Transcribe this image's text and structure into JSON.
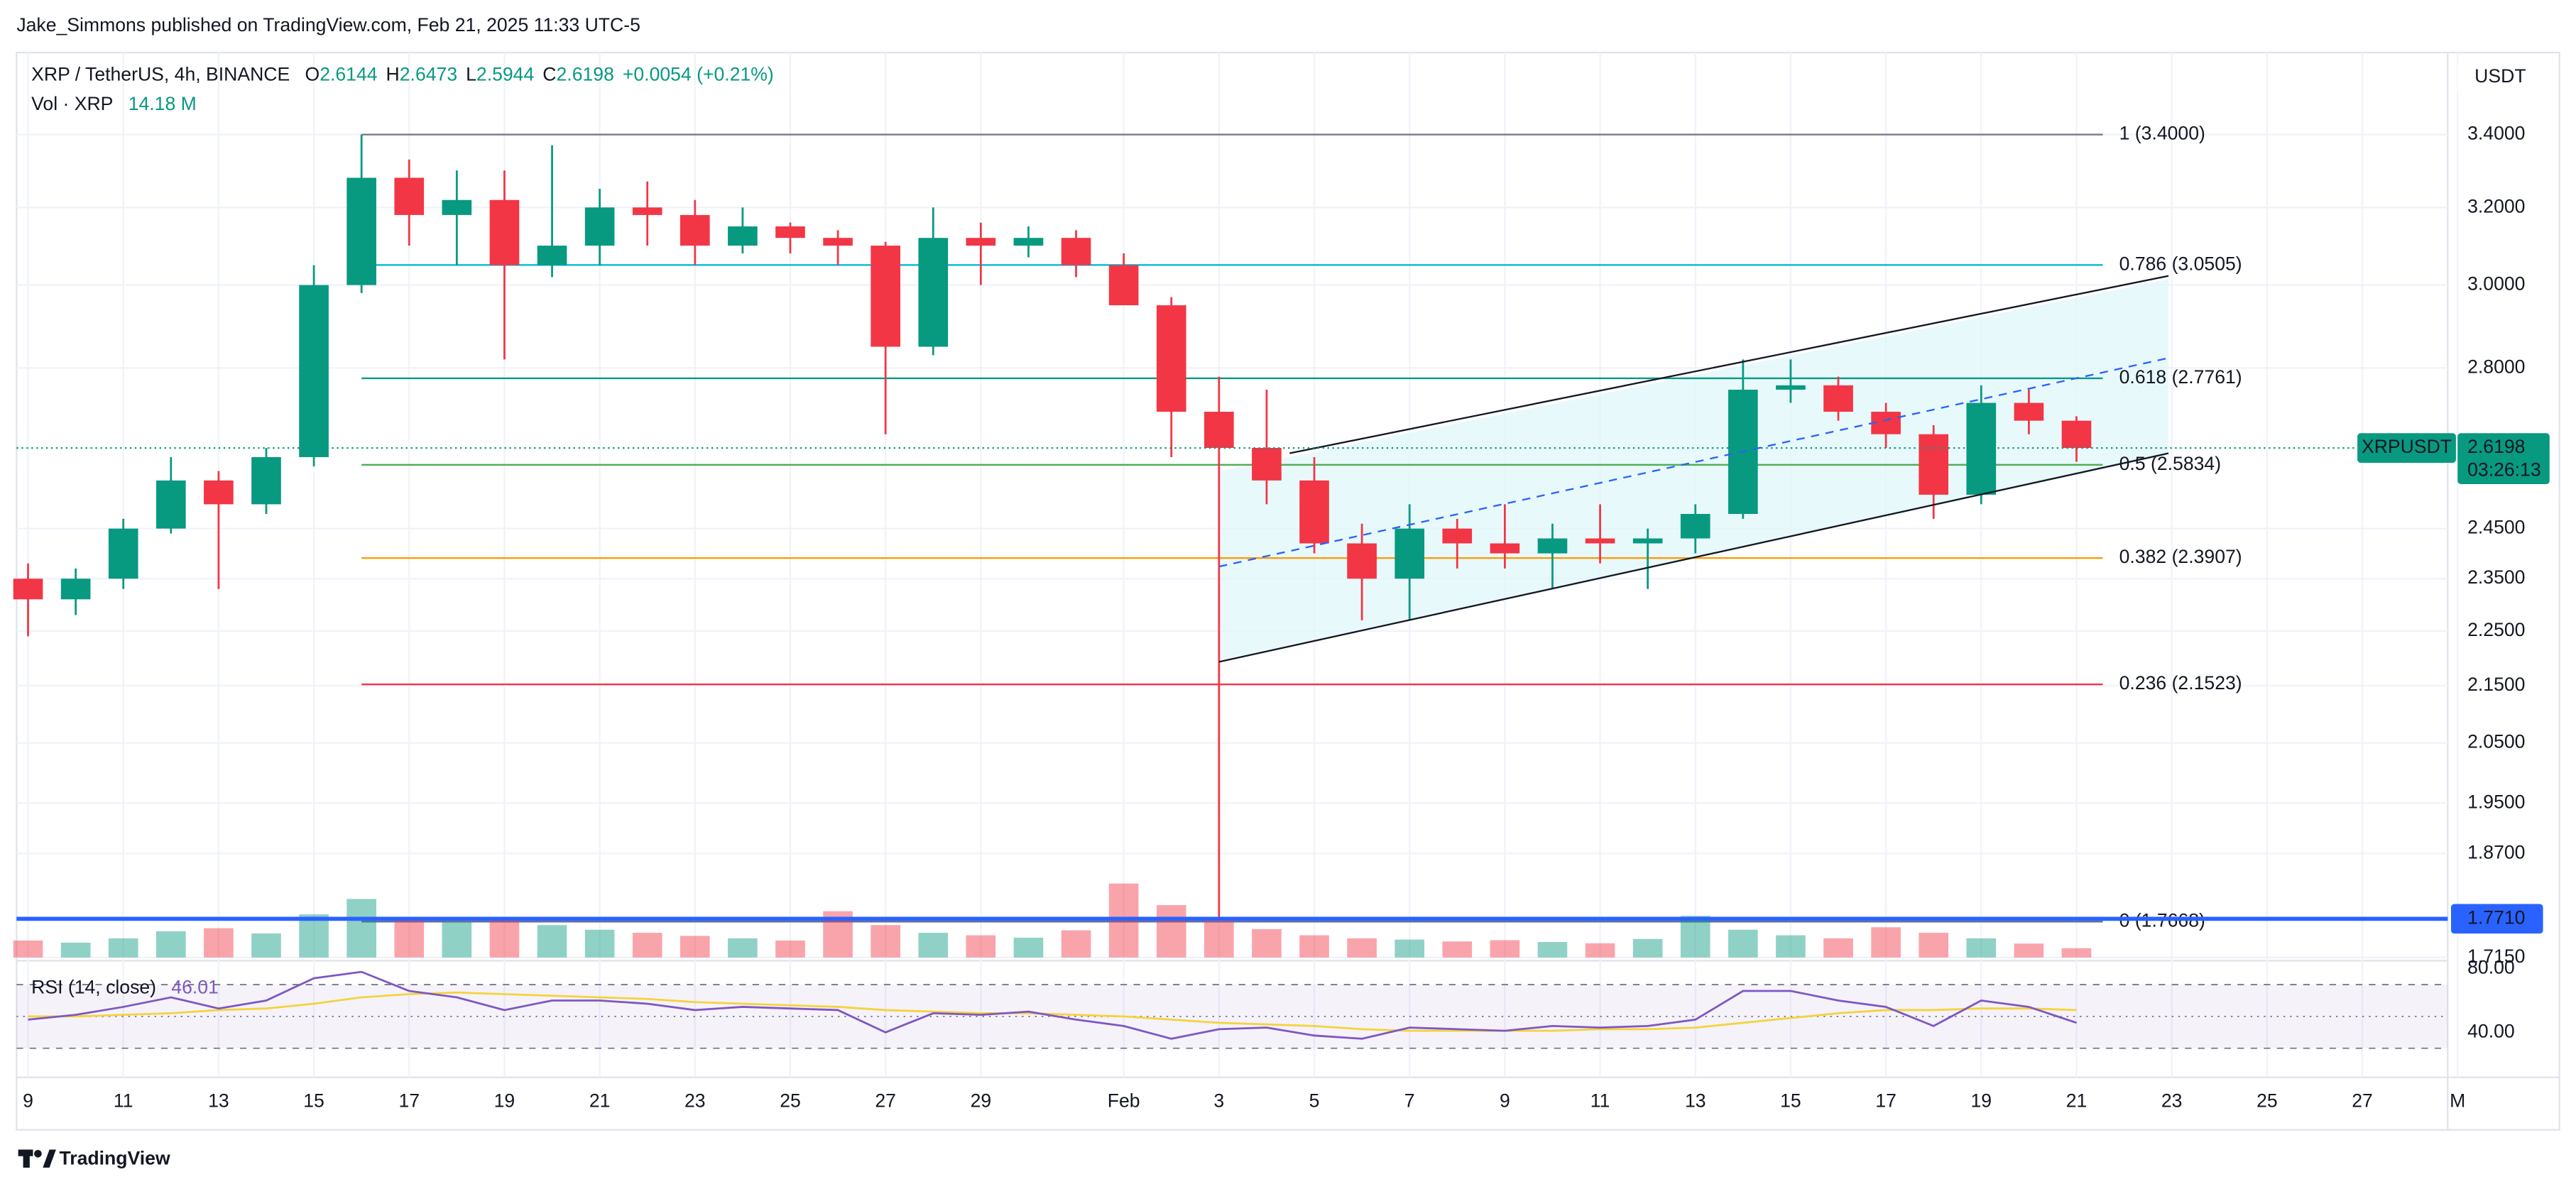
{
  "header": {
    "publisher": "Jake_Simmons published on TradingView.com, Feb 21, 2025 11:33 UTC-5",
    "brand": "TradingView"
  },
  "chart_data": {
    "type": "candlestick",
    "title": "XRP / TetherUS, 4h, BINANCE",
    "ohlc_legend": [
      {
        "key": "O",
        "value": "2.6144"
      },
      {
        "key": "H",
        "value": "2.6473"
      },
      {
        "key": "L",
        "value": "2.5944"
      },
      {
        "key": "C",
        "value": "2.6198"
      }
    ],
    "change": "+0.0054 (+0.21%)",
    "currency": "USDT",
    "log_scale": true,
    "grid": true,
    "up_color": "#089981",
    "down_color": "#f23645",
    "categories": [
      "9",
      null,
      "11",
      null,
      "13",
      null,
      "15",
      null,
      "17",
      null,
      "19",
      null,
      "21",
      null,
      "23",
      null,
      "25",
      null,
      "27",
      null,
      "29",
      null,
      null,
      "Feb",
      null,
      "3",
      null,
      "5",
      null,
      "7",
      null,
      "9",
      null,
      "11",
      null,
      "13",
      null,
      "15",
      null,
      "17",
      null,
      "19",
      null,
      "21"
    ],
    "future_categories": [
      "23",
      "25",
      "27",
      "M"
    ],
    "open": [
      2.35,
      2.31,
      2.35,
      2.45,
      2.55,
      2.5,
      2.6,
      3.0,
      3.28,
      3.18,
      3.22,
      3.05,
      3.1,
      3.2,
      3.18,
      3.1,
      3.15,
      3.12,
      3.1,
      2.85,
      3.12,
      3.1,
      3.12,
      3.05,
      2.95,
      2.7,
      2.62,
      2.55,
      2.42,
      2.35,
      2.45,
      2.42,
      2.4,
      2.43,
      2.42,
      2.43,
      2.48,
      2.75,
      2.76,
      2.7,
      2.65,
      2.52,
      2.72,
      2.68
    ],
    "high": [
      2.38,
      2.37,
      2.47,
      2.6,
      2.57,
      2.62,
      3.05,
      3.4,
      3.33,
      3.3,
      3.3,
      3.37,
      3.25,
      3.27,
      3.22,
      3.2,
      3.16,
      3.14,
      3.11,
      3.2,
      3.16,
      3.15,
      3.14,
      3.08,
      2.97,
      2.78,
      2.75,
      2.6,
      2.46,
      2.5,
      2.47,
      2.5,
      2.46,
      2.5,
      2.45,
      2.5,
      2.82,
      2.82,
      2.78,
      2.72,
      2.67,
      2.76,
      2.75,
      2.69
    ],
    "low": [
      2.24,
      2.28,
      2.33,
      2.44,
      2.33,
      2.48,
      2.58,
      2.98,
      3.1,
      3.05,
      2.82,
      3.02,
      3.05,
      3.1,
      3.05,
      3.08,
      3.08,
      3.05,
      2.65,
      2.83,
      3.0,
      3.07,
      3.02,
      2.95,
      2.6,
      1.77,
      2.5,
      2.4,
      2.27,
      2.27,
      2.37,
      2.37,
      2.33,
      2.38,
      2.33,
      2.4,
      2.47,
      2.72,
      2.68,
      2.62,
      2.47,
      2.5,
      2.65,
      2.59
    ],
    "close": [
      2.31,
      2.35,
      2.45,
      2.55,
      2.5,
      2.6,
      3.0,
      3.28,
      3.18,
      3.22,
      3.05,
      3.1,
      3.2,
      3.18,
      3.1,
      3.15,
      3.12,
      3.1,
      2.85,
      3.12,
      3.1,
      3.12,
      3.05,
      2.95,
      2.7,
      2.62,
      2.55,
      2.42,
      2.35,
      2.45,
      2.42,
      2.4,
      2.43,
      2.42,
      2.43,
      2.48,
      2.75,
      2.76,
      2.7,
      2.65,
      2.52,
      2.72,
      2.68,
      2.6198
    ],
    "ylim": [
      1.715,
      3.64
    ],
    "yticks": [
      {
        "value": 3.4,
        "label": "3.4000"
      },
      {
        "value": 3.2,
        "label": "3.2000"
      },
      {
        "value": 3.0,
        "label": "3.0000"
      },
      {
        "value": 2.8,
        "label": "2.8000"
      },
      {
        "value": 2.45,
        "label": "2.4500"
      },
      {
        "value": 2.35,
        "label": "2.3500"
      },
      {
        "value": 2.25,
        "label": "2.2500"
      },
      {
        "value": 2.15,
        "label": "2.1500"
      },
      {
        "value": 2.05,
        "label": "2.0500"
      },
      {
        "value": 1.95,
        "label": "1.9500"
      },
      {
        "value": 1.87,
        "label": "1.8700"
      },
      {
        "value": 1.715,
        "label": "1.7150"
      }
    ],
    "fib_levels": [
      {
        "label": "1 (3.4000)",
        "value": 3.4,
        "color": "#787b86"
      },
      {
        "label": "0.786 (3.0505)",
        "value": 3.0505,
        "color": "#00bcd4"
      },
      {
        "label": "0.618 (2.7761)",
        "value": 2.7761,
        "color": "#089981"
      },
      {
        "label": "0.5 (2.5834)",
        "value": 2.5834,
        "color": "#4caf50"
      },
      {
        "label": "0.382 (2.3907)",
        "value": 2.3907,
        "color": "#ff9800"
      },
      {
        "label": "0.236 (2.1523)",
        "value": 2.1523,
        "color": "#f23645"
      },
      {
        "label": "0 (1.7668)",
        "value": 1.7668,
        "color": "#5d6a8a"
      }
    ],
    "horizontal_line": {
      "value": 1.771,
      "label": "1.7710",
      "color": "#2962ff"
    },
    "last_price": {
      "symbol": "XRPUSDT",
      "value": 2.6198,
      "countdown": "03:26:13",
      "color": "#089981"
    },
    "volume": {
      "name": "Vol · XRP",
      "last": "14.18 M",
      "values": [
        55,
        48,
        62,
        85,
        95,
        78,
        140,
        190,
        130,
        115,
        120,
        105,
        90,
        80,
        70,
        62,
        55,
        150,
        105,
        80,
        72,
        64,
        88,
        240,
        170,
        118,
        92,
        72,
        62,
        58,
        52,
        56,
        50,
        46,
        60,
        135,
        90,
        72,
        62,
        98,
        80,
        62,
        45,
        30
      ]
    },
    "rsi": {
      "name": "RSI (14, close)",
      "last": "46.01",
      "color": "#7e57c2",
      "ma_color": "#f5d33b",
      "values": [
        48,
        51,
        56,
        62,
        55,
        60,
        74,
        78,
        66,
        62,
        54,
        60,
        60,
        58,
        54,
        56,
        55,
        54,
        40,
        52,
        51,
        53,
        48,
        44,
        36,
        42,
        43,
        38,
        36,
        43,
        42,
        41,
        44,
        43,
        44,
        48,
        66,
        66,
        60,
        56,
        44,
        60,
        56,
        46.01
      ],
      "ma": [
        50,
        50,
        51,
        52,
        54,
        55,
        58,
        62,
        64,
        65,
        64,
        63,
        62,
        61,
        59,
        58,
        57,
        56,
        54,
        53,
        52,
        52,
        51,
        50,
        48,
        46,
        45,
        44,
        42,
        41,
        41,
        41,
        41,
        42,
        42,
        43,
        46,
        49,
        52,
        54,
        54,
        55,
        55,
        54
      ],
      "ylim": [
        20,
        85
      ],
      "yticks": [
        {
          "value": 80,
          "label": "80.00"
        },
        {
          "value": 40,
          "label": "40.00"
        }
      ],
      "bands": [
        70,
        50,
        30
      ]
    }
  }
}
